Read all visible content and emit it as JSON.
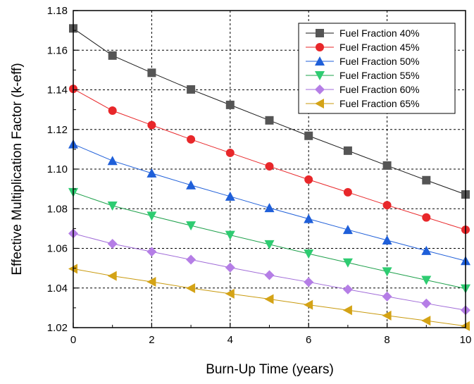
{
  "chart_data": {
    "type": "line",
    "title": "",
    "xlabel": "Burn-Up Time (years)",
    "ylabel": "Effective Multiplication Factor (k-eff)",
    "xlim": [
      0,
      10
    ],
    "ylim": [
      1.02,
      1.18
    ],
    "x_ticks": [
      0,
      2,
      4,
      6,
      8,
      10
    ],
    "y_ticks": [
      1.02,
      1.04,
      1.06,
      1.08,
      1.1,
      1.12,
      1.14,
      1.16,
      1.18
    ],
    "y_tick_labels": [
      "1.02",
      "1.04",
      "1.06",
      "1.08",
      "1.10",
      "1.12",
      "1.14",
      "1.16",
      "1.18"
    ],
    "grid": true,
    "legend_position": "top-right",
    "x": [
      0,
      1,
      2,
      3,
      4,
      5,
      6,
      7,
      8,
      9,
      10
    ],
    "series": [
      {
        "name": "Fuel Fraction 40%",
        "color": "#1a1a1a",
        "marker": "square",
        "marker_color": "#555555",
        "values": [
          1.171,
          1.1573,
          1.1486,
          1.1402,
          1.1324,
          1.1246,
          1.1168,
          1.1093,
          1.1018,
          1.0944,
          1.0872
        ]
      },
      {
        "name": "Fuel Fraction 45%",
        "color": "#e8272a",
        "marker": "circle",
        "marker_color": "#e8272a",
        "values": [
          1.1405,
          1.1295,
          1.1222,
          1.115,
          1.1082,
          1.1014,
          1.0947,
          1.0883,
          1.0818,
          1.0756,
          1.0694
        ]
      },
      {
        "name": "Fuel Fraction 50%",
        "color": "#1f5fd9",
        "marker": "triangle-up",
        "marker_color": "#1f5fd9",
        "values": [
          1.1126,
          1.1042,
          1.0979,
          1.0919,
          1.0862,
          1.0804,
          1.0749,
          1.0694,
          1.0641,
          1.0588,
          1.0537
        ]
      },
      {
        "name": "Fuel Fraction 55%",
        "color": "#1ea04b",
        "marker": "triangle-down",
        "marker_color": "#2ecc71",
        "values": [
          1.0883,
          1.0815,
          1.0764,
          1.0715,
          1.0667,
          1.062,
          1.0573,
          1.0528,
          1.0483,
          1.044,
          1.0397
        ]
      },
      {
        "name": "Fuel Fraction 60%",
        "color": "#a06bd8",
        "marker": "diamond",
        "marker_color": "#b57ee6",
        "values": [
          1.0675,
          1.0623,
          1.0583,
          1.0543,
          1.0503,
          1.0465,
          1.043,
          1.0393,
          1.0357,
          1.0322,
          1.0288
        ]
      },
      {
        "name": "Fuel Fraction 65%",
        "color": "#c99a0e",
        "marker": "triangle-left",
        "marker_color": "#d4a316",
        "values": [
          1.0497,
          1.0461,
          1.0431,
          1.0399,
          1.0371,
          1.0344,
          1.0315,
          1.0288,
          1.0261,
          1.0235,
          1.0208
        ]
      }
    ]
  }
}
